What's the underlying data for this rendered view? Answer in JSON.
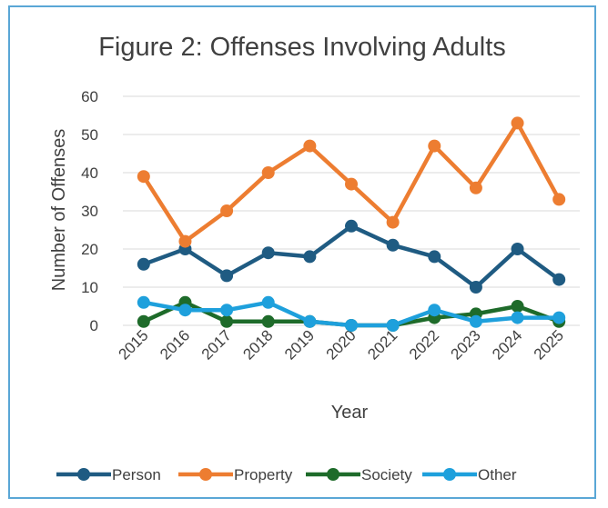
{
  "chart_data": {
    "type": "line",
    "title": "Figure 2: Offenses Involving Adults",
    "xlabel": "Year",
    "ylabel": "Number of Offenses",
    "categories": [
      "2015",
      "2016",
      "2017",
      "2018",
      "2019",
      "2020",
      "2021",
      "2022",
      "2023",
      "2024",
      "2025"
    ],
    "ylim": [
      0,
      60
    ],
    "yticks": [
      0,
      10,
      20,
      30,
      40,
      50,
      60
    ],
    "grid": true,
    "legend_position": "bottom",
    "series": [
      {
        "name": "Person",
        "color": "#1f5b82",
        "values": [
          16,
          20,
          13,
          19,
          18,
          26,
          21,
          18,
          10,
          20,
          12
        ]
      },
      {
        "name": "Property",
        "color": "#ed7d31",
        "values": [
          39,
          22,
          30,
          40,
          47,
          37,
          27,
          47,
          36,
          53,
          33
        ]
      },
      {
        "name": "Society",
        "color": "#1e6b2a",
        "values": [
          1,
          6,
          1,
          1,
          1,
          0,
          0,
          2,
          3,
          5,
          1
        ]
      },
      {
        "name": "Other",
        "color": "#1ea0dc",
        "values": [
          6,
          4,
          4,
          6,
          1,
          0,
          0,
          4,
          1,
          2,
          2
        ]
      }
    ]
  }
}
